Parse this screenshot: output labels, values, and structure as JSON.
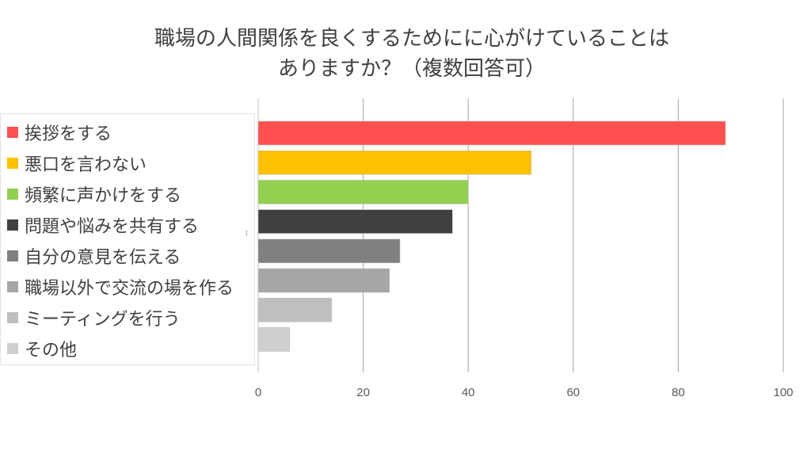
{
  "title_lines": [
    "職場の人間関係を良くするためにに心がけていることは",
    "ありますか？（複数回答可）"
  ],
  "stray_mark": "1",
  "chart_data": {
    "type": "bar",
    "orientation": "horizontal",
    "categories": [
      "挨拶をする",
      "悪口を言わない",
      "頻繁に声かけをする",
      "問題や悩みを共有する",
      "自分の意見を伝える",
      "職場以外で交流の場を作る",
      "ミーティングを行う",
      "その他"
    ],
    "values": [
      89,
      52,
      40,
      37,
      27,
      25,
      14,
      6
    ],
    "colors": [
      "#ff5050",
      "#ffc000",
      "#92d050",
      "#404040",
      "#808080",
      "#a6a6a6",
      "#bfbfbf",
      "#d0cece"
    ],
    "xlim": [
      0,
      100
    ],
    "xticks": [
      0,
      20,
      40,
      60,
      80,
      100
    ],
    "grid": true,
    "legend_position": "left"
  }
}
